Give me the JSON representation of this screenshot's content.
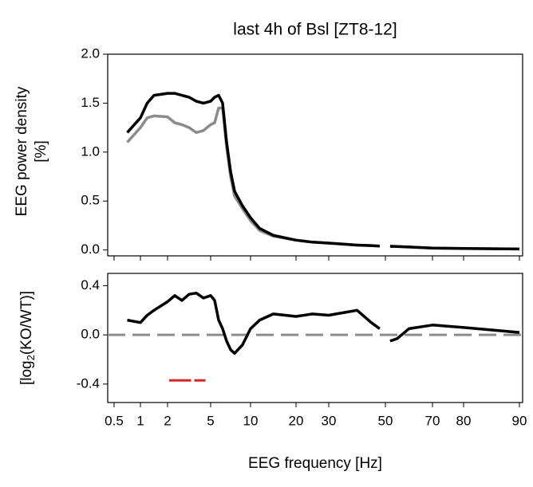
{
  "chart_data": [
    {
      "type": "line",
      "title": "last 4h of Bsl [ZT8-12]",
      "ylabel": [
        "EEG power density",
        "[%]"
      ],
      "xlim": [
        0.38,
        90.5
      ],
      "xticks": [
        0.5,
        1,
        2,
        5,
        10,
        20,
        30,
        50,
        70,
        80,
        90
      ],
      "ylim": [
        -0.06,
        2.0
      ],
      "yticks": [
        {
          "value": 0,
          "label": "0.0"
        },
        0.5,
        {
          "value": 1,
          "label": "1.0"
        },
        1.5,
        {
          "value": 2,
          "label": "2.0"
        }
      ],
      "x": [
        0.75,
        1,
        1.25,
        1.5,
        2,
        2.5,
        3,
        3.5,
        4,
        4.5,
        5,
        5.5,
        6,
        6.5,
        7,
        7.5,
        8,
        9,
        10,
        12,
        15,
        20,
        25,
        30,
        35,
        40,
        45,
        48,
        50,
        52,
        55,
        60,
        70,
        80,
        90
      ],
      "series": [
        {
          "color": "#000000",
          "values": [
            1.2,
            1.35,
            1.5,
            1.58,
            1.6,
            1.6,
            1.58,
            1.56,
            1.52,
            1.5,
            1.52,
            1.56,
            1.58,
            1.5,
            1.1,
            0.8,
            0.6,
            0.45,
            0.33,
            0.22,
            0.15,
            0.1,
            0.08,
            0.07,
            0.06,
            0.05,
            0.045,
            0.04,
            null,
            0.038,
            0.035,
            0.03,
            0.02,
            0.015,
            0.01
          ]
        },
        {
          "color": "#8c8c8c",
          "values": [
            1.1,
            1.25,
            1.35,
            1.37,
            1.36,
            1.3,
            1.28,
            1.25,
            1.2,
            1.22,
            1.28,
            1.3,
            1.45,
            1.45,
            1.05,
            0.75,
            0.55,
            0.42,
            0.3,
            0.2,
            0.14,
            0.1,
            0.08,
            0.07,
            0.06,
            0.05,
            0.045,
            0.04,
            null,
            0.038,
            0.035,
            0.03,
            0.02,
            0.015,
            0.01
          ]
        }
      ]
    },
    {
      "type": "line",
      "ylabel": [
        "[log",
        "2",
        "(KO/WT)]"
      ],
      "xlabel": "EEG frequency [Hz]",
      "xlim": [
        0.38,
        90.5
      ],
      "xticks": [
        0.5,
        1,
        2,
        5,
        10,
        20,
        30,
        50,
        70,
        80,
        90
      ],
      "ylim": [
        -0.55,
        0.5
      ],
      "yticks": [
        -0.4,
        {
          "value": 0,
          "label": "0.0"
        },
        0.4
      ],
      "reference_line": 0,
      "x": [
        0.75,
        1,
        1.25,
        1.5,
        2,
        2.5,
        3,
        3.5,
        4,
        4.5,
        5,
        5.5,
        6,
        6.5,
        7,
        7.5,
        8,
        9,
        10,
        12,
        15,
        20,
        25,
        30,
        35,
        40,
        45,
        48,
        50,
        52,
        55,
        60,
        70,
        80,
        90
      ],
      "series": [
        {
          "color": "#000000",
          "values": [
            0.12,
            0.1,
            0.16,
            0.2,
            0.27,
            0.32,
            0.28,
            0.33,
            0.34,
            0.3,
            0.32,
            0.28,
            0.12,
            0.05,
            -0.05,
            -0.12,
            -0.15,
            -0.08,
            0.05,
            0.12,
            0.17,
            0.15,
            0.17,
            0.16,
            0.18,
            0.2,
            0.1,
            0.05,
            null,
            -0.05,
            -0.03,
            0.05,
            0.08,
            0.06,
            0.02
          ]
        }
      ],
      "significance": {
        "color": "#d62728",
        "x": [
          2.25,
          2.5,
          2.75,
          3,
          3.25,
          3.5,
          4,
          4.25,
          4.5
        ],
        "values": [
          -0.37,
          -0.37,
          -0.37,
          -0.37,
          -0.37,
          -0.37,
          -0.37,
          -0.37,
          -0.37
        ]
      }
    }
  ]
}
